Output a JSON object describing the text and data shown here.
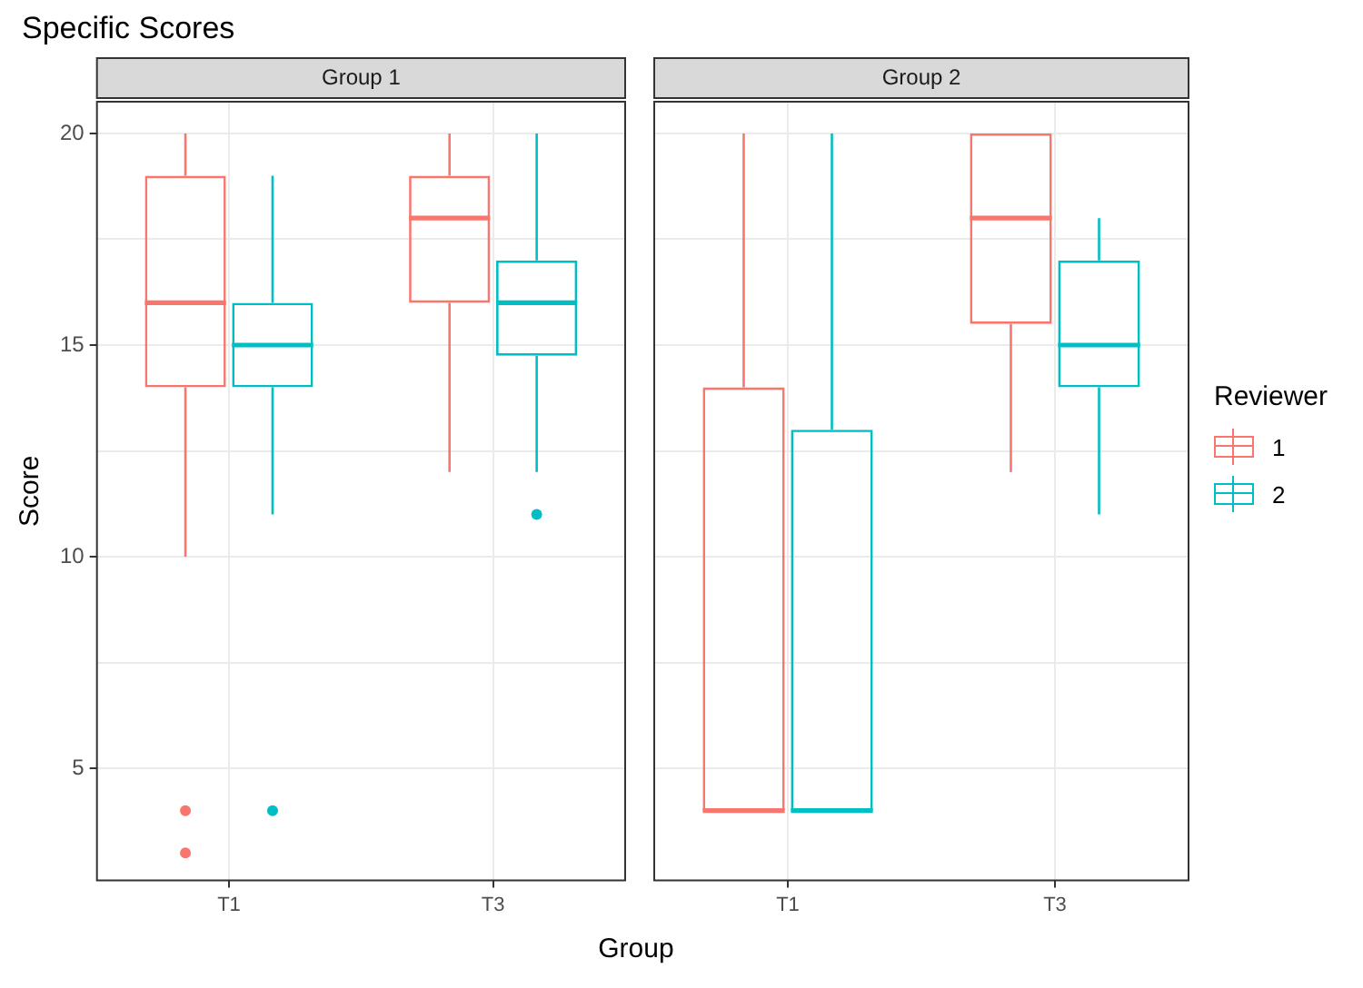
{
  "chart_data": [
    {
      "type": "box",
      "title": "Specific Scores",
      "subtitle": "Group 1",
      "ylabel": "Score",
      "xlabel": "Group",
      "categories": [
        "T1",
        "T3"
      ],
      "series": [
        {
          "name": "1",
          "color": "#f8766d",
          "boxes": [
            {
              "low": 10,
              "q1": 14,
              "median": 16,
              "q3": 19,
              "high": 20,
              "outliers": [
                4,
                3
              ]
            },
            {
              "low": 12,
              "q1": 16,
              "median": 18,
              "q3": 19,
              "high": 20
            }
          ]
        },
        {
          "name": "2",
          "color": "#00bfc4",
          "boxes": [
            {
              "low": 11,
              "q1": 14,
              "median": 15,
              "q3": 16,
              "high": 19,
              "outliers": [
                4
              ]
            },
            {
              "low": 12,
              "q1": 14.75,
              "median": 16,
              "q3": 17,
              "high": 20,
              "outliers": [
                11
              ]
            }
          ]
        }
      ],
      "ylim": [
        2.35,
        20.75
      ],
      "yticks": [
        5,
        {
          "value": 7.5,
          "label": null
        },
        10,
        {
          "value": 12.5,
          "label": null
        },
        15,
        {
          "value": 17.5,
          "label": null
        },
        20
      ],
      "grid": true,
      "legend": "right"
    },
    {
      "type": "box",
      "subtitle": "Group 2",
      "categories": [
        "T1",
        "T3"
      ],
      "legend_title": "Reviewer",
      "series": [
        {
          "name": "1",
          "color": "#f8766d",
          "boxes": [
            {
              "low": 4,
              "q1": 4,
              "median": 4,
              "q3": 14,
              "high": 20
            },
            {
              "low": 12,
              "q1": 15.5,
              "median": 18,
              "q3": 20,
              "high": 20
            }
          ]
        },
        {
          "name": "2",
          "color": "#00bfc4",
          "boxes": [
            {
              "low": 4,
              "q1": 4,
              "median": 4,
              "q3": 13,
              "high": 20
            },
            {
              "low": 11,
              "q1": 14,
              "median": 15,
              "q3": 17,
              "high": 18
            }
          ]
        }
      ],
      "ylim": [
        2.35,
        20.75
      ],
      "yticks": [
        5,
        {
          "value": 7.5,
          "label": null
        },
        10,
        {
          "value": 12.5,
          "label": null
        },
        15,
        {
          "value": 17.5,
          "label": null
        },
        20
      ],
      "grid": true,
      "legend": "right",
      "tick_labels": "x"
    }
  ]
}
